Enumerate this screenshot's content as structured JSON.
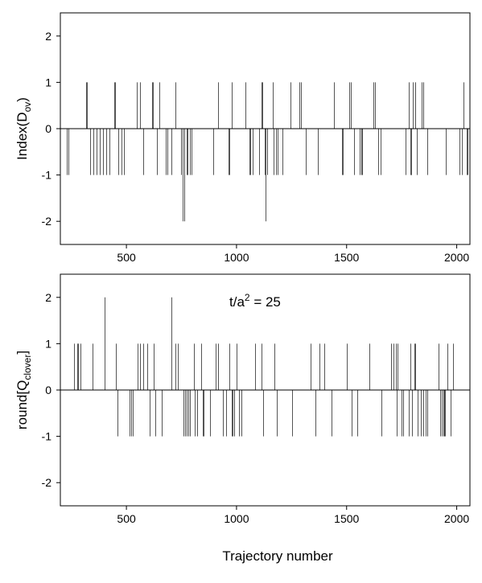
{
  "chart_data": [
    {
      "type": "bar",
      "id": "top",
      "ylabel_main": "Index(D",
      "ylabel_sub": "ov",
      "ylabel_end": ")",
      "annotation": "",
      "xlim": [
        200,
        2060
      ],
      "ylim": [
        -2.5,
        2.5
      ],
      "xticks": [
        500,
        1000,
        1500,
        2000
      ],
      "yticks": [
        -2,
        -1,
        0,
        1,
        2
      ],
      "grid": false,
      "x": [
        228,
        238,
        318,
        322,
        335,
        348,
        365,
        380,
        395,
        408,
        422,
        445,
        448,
        462,
        478,
        488,
        548,
        562,
        575,
        615,
        622,
        638,
        648,
        678,
        685,
        705,
        722,
        748,
        755,
        762,
        772,
        778,
        788,
        795,
        895,
        918,
        962,
        968,
        978,
        1042,
        1058,
        1062,
        1075,
        1102,
        1112,
        1118,
        1128,
        1132,
        1140,
        1165,
        1170,
        1178,
        1188,
        1210,
        1245,
        1285,
        1292,
        1315,
        1368,
        1442,
        1478,
        1482,
        1512,
        1518,
        1532,
        1558,
        1568,
        1572,
        1622,
        1628,
        1642,
        1655,
        1768,
        1782,
        1788,
        1792,
        1795,
        1800,
        1812,
        1818,
        1842,
        1848,
        1868,
        1952,
        2012,
        2022,
        2032,
        2045,
        2050
      ],
      "values": [
        -1,
        -1,
        1,
        1,
        -1,
        -1,
        -1,
        -1,
        -1,
        -1,
        -1,
        1,
        1,
        -1,
        -1,
        -1,
        1,
        1,
        -1,
        1,
        1,
        -1,
        1,
        -1,
        -1,
        -1,
        1,
        -1,
        -2,
        -2,
        -1,
        -1,
        -1,
        -1,
        -1,
        1,
        -1,
        -1,
        1,
        1,
        -1,
        -1,
        -1,
        -1,
        1,
        1,
        -1,
        -2,
        -1,
        1,
        -1,
        -1,
        -1,
        -1,
        1,
        1,
        1,
        -1,
        -1,
        1,
        -1,
        -1,
        1,
        1,
        -1,
        -1,
        -1,
        -1,
        1,
        1,
        -1,
        -1,
        -1,
        1,
        -1,
        -1,
        -1,
        1,
        1,
        -1,
        1,
        1,
        -1,
        -1,
        -1,
        -1,
        1,
        -1,
        -1
      ]
    },
    {
      "type": "bar",
      "id": "bottom",
      "ylabel_main": "round[Q",
      "ylabel_sub": "clover",
      "ylabel_end": "]",
      "annotation_main": "t/a",
      "annotation_sup": "2",
      "annotation_end": " = 25",
      "xlim": [
        200,
        2060
      ],
      "ylim": [
        -2.5,
        2.5
      ],
      "xticks": [
        500,
        1000,
        1500,
        2000
      ],
      "yticks": [
        -2,
        -1,
        0,
        1,
        2
      ],
      "grid": false,
      "xlabel": "Trajectory number",
      "x": [
        262,
        275,
        282,
        290,
        345,
        402,
        452,
        458,
        515,
        520,
        528,
        550,
        562,
        578,
        595,
        605,
        625,
        632,
        660,
        705,
        722,
        732,
        758,
        765,
        775,
        782,
        790,
        805,
        812,
        822,
        838,
        848,
        850,
        878,
        905,
        918,
        938,
        952,
        968,
        978,
        982,
        990,
        1002,
        1012,
        1022,
        1085,
        1115,
        1122,
        1172,
        1182,
        1252,
        1338,
        1358,
        1378,
        1398,
        1432,
        1502,
        1522,
        1548,
        1602,
        1658,
        1702,
        1712,
        1722,
        1728,
        1732,
        1748,
        1755,
        1782,
        1788,
        1798,
        1808,
        1812,
        1822,
        1838,
        1848,
        1858,
        1868,
        1918,
        1925,
        1932,
        1938,
        1942,
        1948,
        1958,
        1972,
        1985
      ],
      "values": [
        1,
        1,
        1,
        1,
        1,
        2,
        1,
        -1,
        -1,
        -1,
        -1,
        1,
        1,
        1,
        1,
        -1,
        1,
        -1,
        -1,
        2,
        1,
        1,
        -1,
        -1,
        -1,
        -1,
        -1,
        1,
        -1,
        -1,
        1,
        -1,
        -1,
        -1,
        1,
        1,
        -1,
        -1,
        1,
        -1,
        -1,
        -1,
        1,
        -1,
        -1,
        1,
        1,
        -1,
        1,
        -1,
        -1,
        1,
        -1,
        1,
        1,
        -1,
        1,
        -1,
        -1,
        1,
        -1,
        1,
        1,
        1,
        -1,
        1,
        -1,
        -1,
        -1,
        1,
        -1,
        1,
        1,
        -1,
        -1,
        -1,
        -1,
        -1,
        1,
        -1,
        -1,
        -1,
        -1,
        -1,
        1,
        -1,
        1
      ]
    }
  ]
}
